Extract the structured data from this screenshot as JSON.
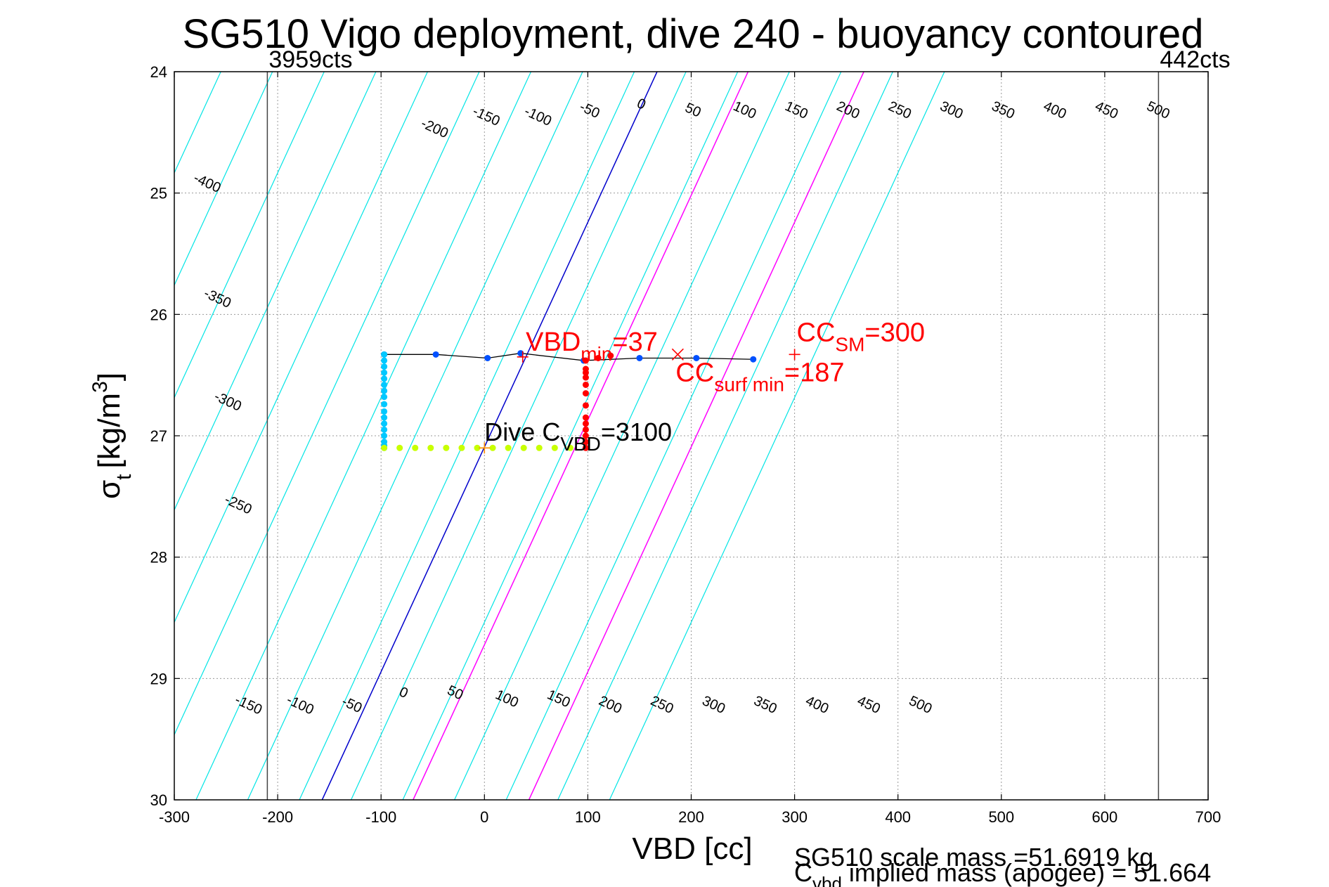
{
  "chart_data": {
    "type": "line",
    "title": "SG510 Vigo deployment, dive 240 - buoyancy contoured",
    "xlabel": "VBD [cc]",
    "ylabel_main": "σ",
    "ylabel_sub": "t",
    "ylabel_unit_pre": "[kg/m",
    "ylabel_unit_sup": "3",
    "ylabel_unit_post": "]",
    "xlim": [
      -300,
      700
    ],
    "ylim": [
      24,
      30
    ],
    "y_reversed": true,
    "grid": true,
    "x_ticks": [
      -300,
      -200,
      -100,
      0,
      100,
      200,
      300,
      400,
      500,
      600,
      700
    ],
    "y_ticks": [
      24,
      25,
      26,
      27,
      28,
      29,
      30
    ],
    "x_tick_labels": [
      "-300",
      "-200",
      "-100",
      "0",
      "100",
      "200",
      "300",
      "400",
      "500",
      "600",
      "700"
    ],
    "y_tick_labels": [
      "24",
      "25",
      "26",
      "27",
      "28",
      "29",
      "30"
    ],
    "colors": {
      "contour": "#00e5e5",
      "zero_contour": "#0000cc",
      "highlight_contour": "#ff00ff",
      "profile_line": "#000000",
      "red": "#ff0000",
      "blue": "#0050ff",
      "cyan_points": "#00c8ff",
      "yellow_points": "#c8ff00",
      "orange_marker": "#ff8c00",
      "grid": "#999999"
    },
    "contours": {
      "intercepts_at_sigma_24": [
        -705,
        -655,
        -605,
        -555,
        -505,
        -455,
        -405,
        -355,
        -305,
        -255,
        -205,
        -155,
        -105,
        -55,
        -5,
        45,
        95,
        145,
        195,
        245,
        295,
        345,
        395,
        445
      ],
      "slope_cc_per_sigma": 54,
      "zero_intercept_at_sigma_24": 167,
      "highlight_intercepts_at_sigma_24": [
        255,
        367
      ]
    },
    "contour_labels_top": [
      {
        "text": "-400",
        "x": -270,
        "y": 24.95
      },
      {
        "text": "-350",
        "x": -260,
        "y": 25.9
      },
      {
        "text": "-300",
        "x": -250,
        "y": 26.75
      },
      {
        "text": "-250",
        "x": -240,
        "y": 27.6
      },
      {
        "text": "-200",
        "x": -50,
        "y": 24.5
      },
      {
        "text": "-150",
        "x": 0,
        "y": 24.4
      },
      {
        "text": "-100",
        "x": 50,
        "y": 24.4
      },
      {
        "text": "-50",
        "x": 100,
        "y": 24.35
      },
      {
        "text": "0",
        "x": 150,
        "y": 24.3
      },
      {
        "text": "50",
        "x": 200,
        "y": 24.35
      },
      {
        "text": "100",
        "x": 250,
        "y": 24.35
      },
      {
        "text": "150",
        "x": 300,
        "y": 24.35
      },
      {
        "text": "200",
        "x": 350,
        "y": 24.35
      },
      {
        "text": "250",
        "x": 400,
        "y": 24.35
      },
      {
        "text": "300",
        "x": 450,
        "y": 24.35
      },
      {
        "text": "350",
        "x": 500,
        "y": 24.35
      },
      {
        "text": "400",
        "x": 550,
        "y": 24.35
      },
      {
        "text": "450",
        "x": 600,
        "y": 24.35
      },
      {
        "text": "500",
        "x": 650,
        "y": 24.35
      }
    ],
    "contour_labels_bottom": [
      {
        "text": "-150",
        "x": -230,
        "y": 29.25
      },
      {
        "text": "-100",
        "x": -180,
        "y": 29.25
      },
      {
        "text": "-50",
        "x": -130,
        "y": 29.25
      },
      {
        "text": "0",
        "x": -80,
        "y": 29.15
      },
      {
        "text": "50",
        "x": -30,
        "y": 29.15
      },
      {
        "text": "100",
        "x": 20,
        "y": 29.2
      },
      {
        "text": "150",
        "x": 70,
        "y": 29.2
      },
      {
        "text": "200",
        "x": 120,
        "y": 29.25
      },
      {
        "text": "250",
        "x": 170,
        "y": 29.25
      },
      {
        "text": "300",
        "x": 220,
        "y": 29.25
      },
      {
        "text": "350",
        "x": 270,
        "y": 29.25
      },
      {
        "text": "400",
        "x": 320,
        "y": 29.25
      },
      {
        "text": "450",
        "x": 370,
        "y": 29.25
      },
      {
        "text": "500",
        "x": 420,
        "y": 29.25
      }
    ],
    "vertical_limits": [
      {
        "x": -210,
        "label": "3959cts"
      },
      {
        "x": 652,
        "label": "442cts"
      }
    ],
    "series": [
      {
        "name": "surface",
        "color": "#000000",
        "x": [
          -97,
          -47,
          3,
          35,
          96,
          150,
          205,
          260
        ],
        "y": [
          26.33,
          26.33,
          26.36,
          26.32,
          26.38,
          26.36,
          26.36,
          26.37
        ]
      },
      {
        "name": "descent",
        "color": "#00c8ff",
        "x": [
          -97,
          -97,
          -97,
          -97,
          -97,
          -97,
          -97,
          -97,
          -97,
          -97,
          -97,
          -97,
          -97,
          -97,
          -97,
          -97,
          -97
        ],
        "y": [
          26.33,
          26.38,
          26.43,
          26.48,
          26.53,
          26.58,
          26.63,
          26.68,
          26.74,
          26.8,
          26.85,
          26.9,
          26.95,
          27.0,
          27.05,
          27.08,
          27.1
        ]
      },
      {
        "name": "bottom",
        "color": "#c8ff00",
        "x": [
          -97,
          -82,
          -67,
          -52,
          -37,
          -22,
          -7,
          8,
          23,
          38,
          53,
          68,
          83
        ],
        "y": [
          27.1,
          27.1,
          27.1,
          27.1,
          27.1,
          27.1,
          27.1,
          27.1,
          27.1,
          27.1,
          27.1,
          27.1,
          27.1
        ]
      },
      {
        "name": "ascent",
        "color": "#ff0000",
        "x": [
          98,
          98,
          98,
          98,
          98,
          98,
          98,
          98,
          98,
          98,
          98,
          98,
          98,
          110,
          122
        ],
        "y": [
          27.1,
          27.05,
          27.0,
          26.95,
          26.9,
          26.85,
          26.75,
          26.65,
          26.58,
          26.52,
          26.48,
          26.45,
          26.38,
          26.36,
          26.34
        ]
      }
    ],
    "markers": [
      {
        "shape": "plus",
        "color": "#ff0000",
        "x": 37,
        "y": 26.35
      },
      {
        "shape": "cross",
        "color": "#ff0000",
        "x": 187,
        "y": 26.33
      },
      {
        "shape": "plus",
        "color": "#ff0000",
        "x": 300,
        "y": 26.33
      },
      {
        "shape": "plus",
        "color": "#ff8c00",
        "x": 0,
        "y": 27.1
      }
    ],
    "annotations": {
      "vbd_min": {
        "main": "VBD",
        "sub": "min",
        "value": "=37",
        "x": 40,
        "y": 26.3
      },
      "cc_surf_min": {
        "main": "CC",
        "sub": "surf min",
        "value": "=187",
        "x": 185,
        "y": 26.55
      },
      "cc_sm": {
        "main": "CC",
        "sub": "SM",
        "value": "=300",
        "x": 302,
        "y": 26.22
      },
      "dive_cvbd": {
        "main": "Dive C",
        "sub": "VBD",
        "value": "=3100",
        "x": 0,
        "y": 27.04
      }
    },
    "footer": {
      "line1": "SG510 scale mass =51.6919 kg",
      "line2_main": "C",
      "line2_sub": "vbd",
      "line2_rest": " implied mass (apogee) = 51.664"
    }
  }
}
